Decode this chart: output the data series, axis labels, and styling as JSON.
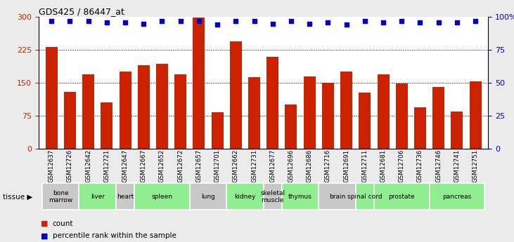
{
  "title": "GDS425 / 86447_at",
  "samples": [
    "GSM12637",
    "GSM12726",
    "GSM12642",
    "GSM12721",
    "GSM12647",
    "GSM12667",
    "GSM12652",
    "GSM12672",
    "GSM12657",
    "GSM12701",
    "GSM12662",
    "GSM12731",
    "GSM12677",
    "GSM12696",
    "GSM12686",
    "GSM12716",
    "GSM12691",
    "GSM12711",
    "GSM12681",
    "GSM12706",
    "GSM12736",
    "GSM12746",
    "GSM12741",
    "GSM12751"
  ],
  "counts": [
    232,
    130,
    170,
    105,
    175,
    190,
    193,
    170,
    298,
    83,
    245,
    163,
    210,
    100,
    165,
    150,
    175,
    128,
    170,
    148,
    95,
    140,
    85,
    153
  ],
  "percentile": [
    97,
    97,
    97,
    96,
    96,
    95,
    97,
    97,
    97,
    94,
    97,
    97,
    95,
    97,
    95,
    96,
    94,
    97,
    96,
    97,
    96,
    96,
    96,
    97
  ],
  "tissues": [
    {
      "name": "bone\nmarrow",
      "start": 0,
      "end": 2,
      "color": "#c8c8c8"
    },
    {
      "name": "liver",
      "start": 2,
      "end": 4,
      "color": "#90ee90"
    },
    {
      "name": "heart",
      "start": 4,
      "end": 5,
      "color": "#c8c8c8"
    },
    {
      "name": "spleen",
      "start": 5,
      "end": 8,
      "color": "#90ee90"
    },
    {
      "name": "lung",
      "start": 8,
      "end": 10,
      "color": "#c8c8c8"
    },
    {
      "name": "kidney",
      "start": 10,
      "end": 12,
      "color": "#90ee90"
    },
    {
      "name": "skeletal\nmuscle",
      "start": 12,
      "end": 13,
      "color": "#c8c8c8"
    },
    {
      "name": "thymus",
      "start": 13,
      "end": 15,
      "color": "#90ee90"
    },
    {
      "name": "brain",
      "start": 15,
      "end": 17,
      "color": "#c8c8c8"
    },
    {
      "name": "spinal cord",
      "start": 17,
      "end": 18,
      "color": "#90ee90"
    },
    {
      "name": "prostate",
      "start": 18,
      "end": 21,
      "color": "#90ee90"
    },
    {
      "name": "pancreas",
      "start": 21,
      "end": 24,
      "color": "#90ee90"
    }
  ],
  "bar_color": "#cc2200",
  "dot_color": "#0000cc",
  "ylim_left": [
    0,
    300
  ],
  "ylim_right": [
    0,
    100
  ],
  "yticks_left": [
    0,
    75,
    150,
    225,
    300
  ],
  "yticks_right": [
    0,
    25,
    50,
    75,
    100
  ],
  "ytick_labels_right": [
    "0",
    "25",
    "50",
    "75",
    "100%"
  ],
  "grid_lines": [
    75,
    150,
    225
  ],
  "background_color": "#ebebeb",
  "plot_bg_color": "#ffffff",
  "xtick_bg_color": "#c8c8c8"
}
